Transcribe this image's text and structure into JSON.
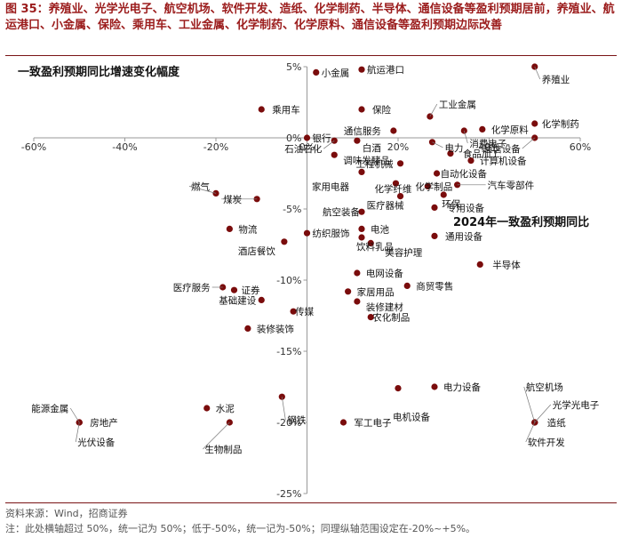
{
  "title": "图 35：养殖业、光学光电子、航空机场、软件开发、造纸、化学制药、半导体、通信设备等盈利预期居前，养殖业、航运港口、小金属、保险、乘用车、工业金属、化学制药、化学原料、通信设备等盈利预期边际改善",
  "source": "资料来源：Wind，招商证券",
  "note": "注：此处横轴超过 50%，统一记为 50%；低于-50%，统一记为-50%；同理纵轴范围设定在-20%~+5%。",
  "colors": {
    "point": "#7a0c0c",
    "title": "#9b1c1c",
    "axis": "#999999"
  },
  "chart_data": {
    "type": "scatter",
    "ylabel": "一致盈利预期同比增速变化幅度",
    "xlabel": "2024年一致盈利预期同比",
    "xlim": [
      -60,
      60
    ],
    "ylim": [
      -25,
      5
    ],
    "xticks": [
      -60,
      -40,
      -20,
      0,
      20,
      40,
      60
    ],
    "xtick_labels": [
      "-60%",
      "-40%",
      "-20%",
      "0%",
      "20%",
      "40%",
      "60%"
    ],
    "yticks": [
      5,
      0,
      -5,
      -10,
      -15,
      -20,
      -25
    ],
    "ytick_labels": [
      "5%",
      "0%",
      "-5%",
      "-10%",
      "-15%",
      "-20%",
      "-25%"
    ],
    "points": [
      {
        "name": "养殖业",
        "x": 50,
        "y": 5
      },
      {
        "name": "化学制药",
        "x": 50,
        "y": 1
      },
      {
        "name": "小金属",
        "x": 2,
        "y": 4.6
      },
      {
        "name": "航运港口",
        "x": 12,
        "y": 4.8
      },
      {
        "name": "乘用车",
        "x": -10,
        "y": 2
      },
      {
        "name": "保险",
        "x": 12,
        "y": 2
      },
      {
        "name": "工业金属",
        "x": 27,
        "y": 1.5
      },
      {
        "name": "通信服务",
        "x": 19,
        "y": 0.5
      },
      {
        "name": "化学原料",
        "x": 38.5,
        "y": 0.6
      },
      {
        "name": "消费电子",
        "x": 34.5,
        "y": 0.5
      },
      {
        "name": "通信设备",
        "x": 50,
        "y": 0
      },
      {
        "name": "银行",
        "x": 0,
        "y": 0
      },
      {
        "name": "石油石化",
        "x": 6,
        "y": -0.2
      },
      {
        "name": "白酒",
        "x": 11,
        "y": -0.2
      },
      {
        "name": "电力",
        "x": 27.5,
        "y": -0.3
      },
      {
        "name": "调味发酵品",
        "x": 6,
        "y": -1.2
      },
      {
        "name": "食品加工",
        "x": 31.5,
        "y": -1.1
      },
      {
        "name": "计算机设备",
        "x": 36,
        "y": -1.6
      },
      {
        "name": "工程机械",
        "x": 20.5,
        "y": -1.8
      },
      {
        "name": "自动化设备",
        "x": 28.5,
        "y": -2.5
      },
      {
        "name": "家用电器",
        "x": 12,
        "y": -2.4
      },
      {
        "name": "化学制品",
        "x": 26.5,
        "y": -3.4
      },
      {
        "name": "汽车零部件",
        "x": 33,
        "y": -3.3
      },
      {
        "name": "化学纤维",
        "x": 19.5,
        "y": -3.2
      },
      {
        "name": "燃气",
        "x": -20,
        "y": -3.9
      },
      {
        "name": "环保",
        "x": 30,
        "y": -4
      },
      {
        "name": "医疗器械",
        "x": 20.5,
        "y": -4.1
      },
      {
        "name": "煤炭",
        "x": -11,
        "y": -4.3
      },
      {
        "name": "专用设备",
        "x": 28,
        "y": -4.9
      },
      {
        "name": "航空装备",
        "x": 12,
        "y": -5.2
      },
      {
        "name": "物流",
        "x": -17,
        "y": -6.4
      },
      {
        "name": "电池",
        "x": 12,
        "y": -6.4
      },
      {
        "name": "纺织服饰",
        "x": 0,
        "y": -6.7
      },
      {
        "name": "通用设备",
        "x": 28,
        "y": -6.9
      },
      {
        "name": "饮料乳品",
        "x": 12,
        "y": -7
      },
      {
        "name": "酒店餐饮",
        "x": -5,
        "y": -7.3
      },
      {
        "name": "美容护理",
        "x": 14,
        "y": -7.4
      },
      {
        "name": "半导体",
        "x": 38,
        "y": -8.9
      },
      {
        "name": "电网设备",
        "x": 11,
        "y": -9.5
      },
      {
        "name": "商贸零售",
        "x": 22,
        "y": -10.4
      },
      {
        "name": "医疗服务",
        "x": -18.5,
        "y": -10.5
      },
      {
        "name": "证券",
        "x": -16,
        "y": -10.7
      },
      {
        "name": "家居用品",
        "x": 9,
        "y": -10.8
      },
      {
        "name": "基础建设",
        "x": -10,
        "y": -11.4
      },
      {
        "name": "装修建材",
        "x": 11,
        "y": -11.5
      },
      {
        "name": "传媒",
        "x": -3,
        "y": -12.2
      },
      {
        "name": "农化制品",
        "x": 14,
        "y": -12.6
      },
      {
        "name": "装修装饰",
        "x": -13,
        "y": -13.4
      },
      {
        "name": "电机设备",
        "x": 20,
        "y": -17.6
      },
      {
        "name": "电力设备",
        "x": 28,
        "y": -17.5
      },
      {
        "name": "水泥",
        "x": -22,
        "y": -19
      },
      {
        "name": "钢铁",
        "x": -5.5,
        "y": -18.2
      },
      {
        "name": "航空机场",
        "x": 50,
        "y": -20
      },
      {
        "name": "光学光电子",
        "x": 50,
        "y": -20
      },
      {
        "name": "造纸",
        "x": 50,
        "y": -20
      },
      {
        "name": "软件开发",
        "x": 50,
        "y": -20
      },
      {
        "name": "能源金属",
        "x": -50,
        "y": -20
      },
      {
        "name": "房地产",
        "x": -50,
        "y": -20
      },
      {
        "name": "光伏设备",
        "x": -50,
        "y": -20
      },
      {
        "name": "生物制品",
        "x": -17,
        "y": -20
      },
      {
        "name": "军工电子",
        "x": 8,
        "y": -20
      }
    ]
  }
}
